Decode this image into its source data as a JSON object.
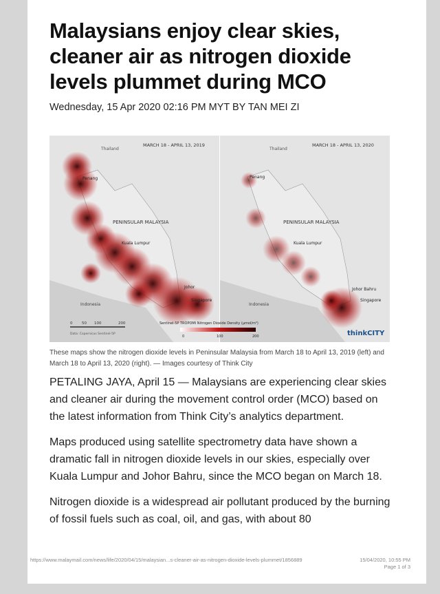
{
  "article": {
    "title": "Malaysians enjoy clear skies, cleaner air as nitrogen dioxide levels plummet during MCO",
    "byline": "Wednesday, 15 Apr 2020 02:16 PM MYT BY TAN MEI ZI",
    "image": {
      "left": {
        "date": "MARCH 18 - APRIL 13, 2019",
        "country": "Thailand",
        "penang": "Penang",
        "peninsula": "PENINSULAR MALAYSIA",
        "kl": "Kuala Lumpur",
        "johor": "Johor",
        "singapore": "Singapore",
        "indonesia": "Indonesia"
      },
      "right": {
        "date": "MARCH 18 - APRIL 13, 2020",
        "country": "Thailand",
        "penang": "Penang",
        "peninsula": "PENINSULAR MALAYSIA",
        "kl": "Kuala Lumpur",
        "johor": "Johor Bahru",
        "singapore": "Singapore",
        "indonesia": "Indonesia"
      },
      "scale": [
        "0",
        "50",
        "100",
        "200"
      ],
      "source": "Data: Copernicus Sentinel-5P",
      "legend_title": "Sentinel-5P TROPOMI Nitrogen Dioxide Density (μmol/m²)",
      "legend_ticks": [
        "0",
        "100",
        "200"
      ],
      "brand": "thinkCITY"
    },
    "caption": "These maps show the nitrogen dioxide levels in Peninsular Malaysia from March 18 to April 13, 2019 (left) and March 18 to April 13, 2020 (right). — Images courtesy of Think City",
    "paragraphs": [
      "PETALING JAYA, April 15 — Malaysians are experiencing clear skies and cleaner air during the movement control order (MCO) based on the latest information from Think City’s analytics department.",
      "Maps produced using satellite spectrometry data have shown a dramatic fall in nitrogen dioxide levels in our skies, especially over Kuala Lumpur and Johor Bahru, since the MCO began on March 18.",
      "Nitrogen dioxide is a widespread air pollutant produced by the burning of fossil fuels such as coal, oil, and gas, with about 80"
    ]
  },
  "footer": {
    "url": "https://www.malaymail.com/news/life/2020/04/15/malaysian...s-cleaner-air-as-nitrogen-dioxide-levels-plummet/1856889",
    "date": "15/04/2020, 10:55 PM",
    "page": "Page 1 of 3"
  }
}
